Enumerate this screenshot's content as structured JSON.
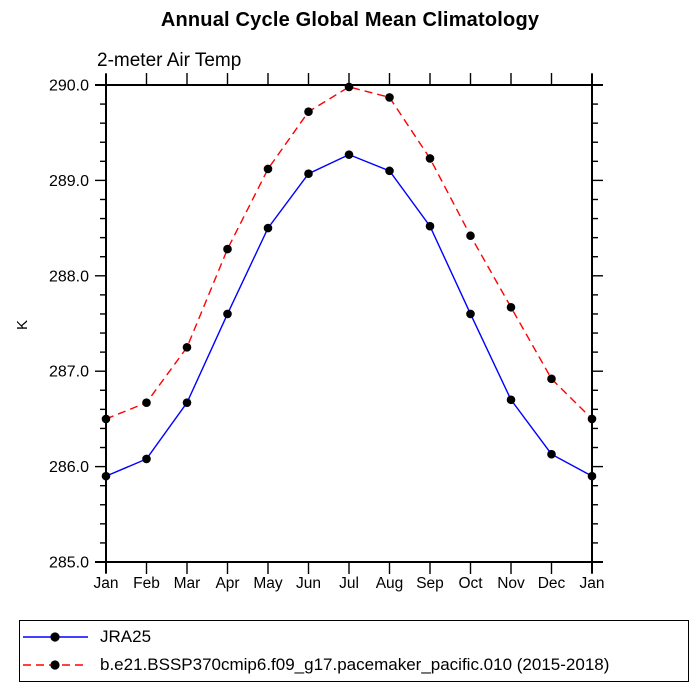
{
  "chart_data": {
    "type": "line",
    "title": "Annual Cycle Global Mean Climatology",
    "subtitle": "2-meter Air Temp",
    "ylabel": "K",
    "x_categories": [
      "Jan",
      "Feb",
      "Mar",
      "Apr",
      "May",
      "Jun",
      "Jul",
      "Aug",
      "Sep",
      "Oct",
      "Nov",
      "Dec",
      "Jan"
    ],
    "ylim": [
      285.0,
      290.0
    ],
    "y_major_step": 1.0,
    "y_minor_step": 0.2,
    "y_tick_labels": [
      "285.0",
      "286.0",
      "287.0",
      "288.0",
      "289.0",
      "290.0"
    ],
    "grid": false,
    "legend_position": "bottom-box",
    "series": [
      {
        "name": "JRA25",
        "color": "#0000ff",
        "line_style": "solid",
        "marker": "filled-circle",
        "marker_color": "#000000",
        "values": [
          285.9,
          286.08,
          286.67,
          287.6,
          288.5,
          289.07,
          289.27,
          289.1,
          288.52,
          287.6,
          286.7,
          286.13,
          285.9
        ]
      },
      {
        "name": "b.e21.BSSP370cmip6.f09_g17.pacemaker_pacific.010 (2015-2018)",
        "color": "#ff0000",
        "line_style": "dashed",
        "marker": "filled-circle",
        "marker_color": "#000000",
        "values": [
          286.5,
          286.67,
          287.25,
          288.28,
          289.12,
          289.72,
          289.98,
          289.87,
          289.23,
          288.42,
          287.67,
          286.92,
          286.5
        ]
      }
    ],
    "colors": {
      "axis": "#000000",
      "background": "#ffffff"
    }
  }
}
